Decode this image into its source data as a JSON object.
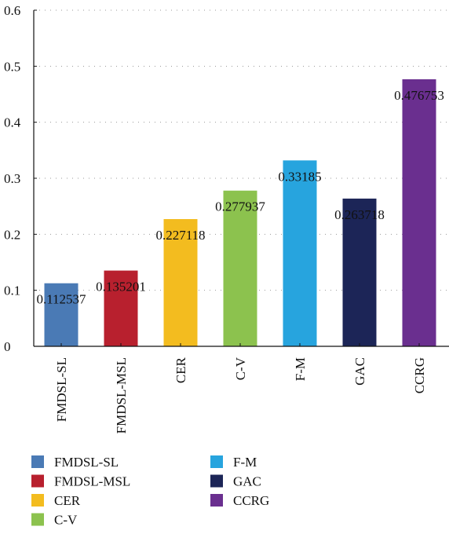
{
  "chart_data": {
    "type": "bar",
    "title": "",
    "xlabel": "",
    "ylabel": "",
    "categories": [
      "FMDSL-SL",
      "FMDSL-MSL",
      "CER",
      "C-V",
      "F-M",
      "GAC",
      "CCRG"
    ],
    "values": [
      0.112537,
      0.135201,
      0.227118,
      0.277937,
      0.33185,
      0.263718,
      0.476753
    ],
    "value_labels": [
      "0.112537",
      "0.135201",
      "0.227118",
      "0.277937",
      "0.33185",
      "0.263718",
      "0.476753"
    ],
    "colors": [
      "#4a7ab5",
      "#b8202e",
      "#f3bc1f",
      "#8cc24e",
      "#27a4de",
      "#1c2557",
      "#6a2f8f"
    ],
    "ylim": [
      0,
      0.6
    ],
    "yticks": [
      0,
      0.1,
      0.2,
      0.3,
      0.4,
      0.5,
      0.6
    ],
    "ytick_labels": [
      "0",
      "0.1",
      "0.2",
      "0.3",
      "0.4",
      "0.5",
      "0.6"
    ],
    "grid": "dotted horizontal",
    "legend": {
      "placement": "bottom",
      "entries": [
        "FMDSL-SL",
        "FMDSL-MSL",
        "CER",
        "C-V",
        "F-M",
        "GAC",
        "CCRG"
      ]
    }
  }
}
